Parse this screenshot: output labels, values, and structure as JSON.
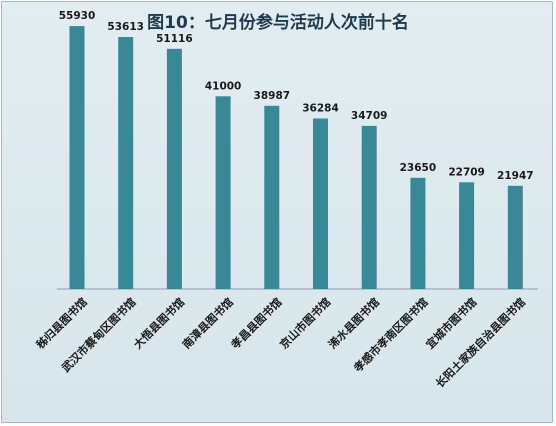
{
  "chart_data": {
    "type": "bar",
    "title": "图10：七月份参与活动人次前十名",
    "categories": [
      "秭归县图书馆",
      "武汉市蔡甸区图书馆",
      "大悟县图书馆",
      "南漳县图书馆",
      "孝昌县图书馆",
      "京山市图书馆",
      "浠水县图书馆",
      "孝感市孝南区图书馆",
      "宜城市图书馆",
      "长阳土家族自治县图书馆"
    ],
    "values": [
      55930,
      53613,
      51116,
      41000,
      38987,
      36284,
      34709,
      23650,
      22709,
      21947
    ],
    "ylim": [
      0,
      60000
    ],
    "bar_color": "#3a8798",
    "grid": false,
    "legend": "none"
  }
}
